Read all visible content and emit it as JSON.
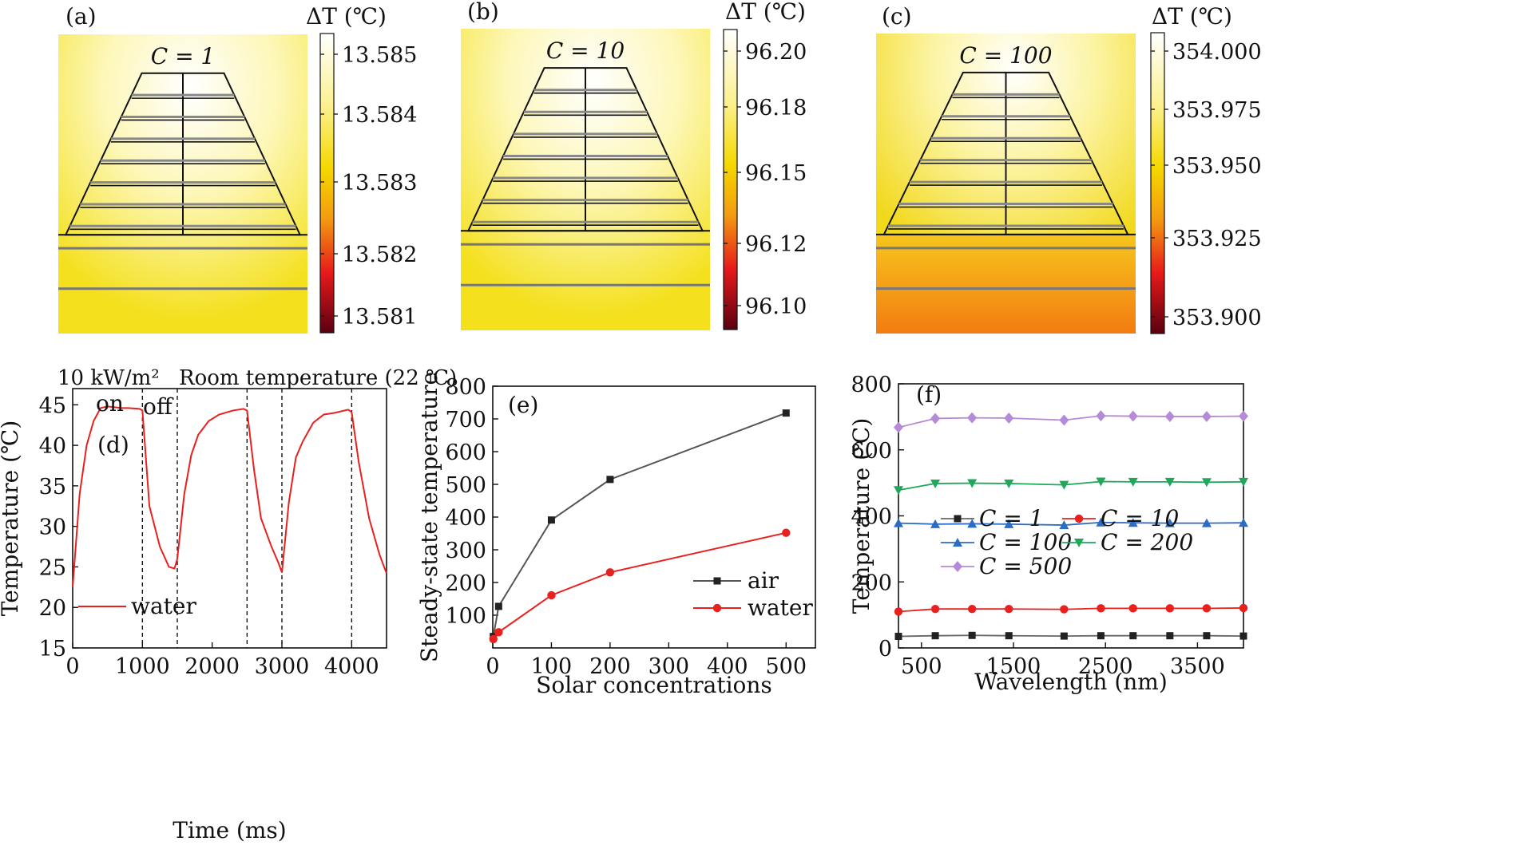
{
  "colors": {
    "hot_white": "#fffef0",
    "yellow": "#f6e21a",
    "orange": "#f58a10",
    "red": "#e31a1c",
    "dark_red": "#6b0012",
    "series_red": "#e8211f",
    "series_gray": "#555555"
  },
  "heatmaps": [
    {
      "panel": "(a)",
      "label": "C = 1",
      "colorbar_title": "ΔT (℃)",
      "ticks": [
        "13.585",
        "13.584",
        "13.583",
        "13.582",
        "13.581"
      ],
      "bottom_orange": false
    },
    {
      "panel": "(b)",
      "label": "C = 10",
      "colorbar_title": "ΔT (℃)",
      "ticks": [
        "96.20",
        "96.18",
        "96.15",
        "96.12",
        "96.10"
      ],
      "bottom_orange": false
    },
    {
      "panel": "(c)",
      "label": "C = 100",
      "colorbar_title": "ΔT (℃)",
      "ticks": [
        "354.000",
        "353.975",
        "353.950",
        "353.925",
        "353.900"
      ],
      "bottom_orange": true
    }
  ],
  "chart_data": [
    {
      "type": "line",
      "panel": "(d)",
      "title": "",
      "xlabel": "Time (ms)",
      "ylabel": "Temperature (℃)",
      "xlim": [
        0,
        4500
      ],
      "ylim": [
        15,
        47
      ],
      "xticks": [
        "0",
        "1000",
        "2000",
        "3000",
        "4000"
      ],
      "yticks": [
        "15",
        "20",
        "25",
        "30",
        "35",
        "40",
        "45"
      ],
      "annotations": {
        "power": "10 kW/m²",
        "room": "Room temperature (22 ℃)",
        "on": "on",
        "off": "off"
      },
      "vlines": [
        1000,
        1500,
        2500,
        3000,
        4000
      ],
      "legend": [
        "water"
      ],
      "series": [
        {
          "name": "water",
          "x": [
            0,
            100,
            200,
            300,
            400,
            500,
            600,
            700,
            800,
            960,
            1000,
            1100,
            1250,
            1380,
            1460,
            1500,
            1600,
            1700,
            1800,
            1950,
            2100,
            2300,
            2450,
            2500,
            2600,
            2700,
            2850,
            2950,
            3000,
            3100,
            3200,
            3300,
            3450,
            3600,
            3750,
            3950,
            4000,
            4100,
            4250,
            4400,
            4500
          ],
          "y": [
            22.5,
            34,
            40,
            43,
            44.6,
            44.8,
            44.7,
            44.6,
            44.6,
            44.5,
            44.3,
            32.5,
            27.5,
            25,
            24.8,
            26,
            34,
            38.8,
            41.3,
            43,
            43.8,
            44.3,
            44.5,
            44.3,
            37,
            31,
            27.5,
            25.5,
            24.3,
            33,
            38.5,
            40.5,
            42.8,
            43.8,
            44,
            44.4,
            44.1,
            38,
            31,
            26.5,
            24.2
          ]
        }
      ]
    },
    {
      "type": "line",
      "panel": "(e)",
      "title": "",
      "xlabel": "Solar concentrations",
      "ylabel": "Steady-state temperature",
      "xlim": [
        0,
        550
      ],
      "ylim": [
        0,
        800
      ],
      "xticks": [
        "0",
        "100",
        "200",
        "300",
        "400",
        "500"
      ],
      "yticks": [
        "100",
        "200",
        "300",
        "400",
        "500",
        "600",
        "700",
        "800"
      ],
      "legend": [
        "air",
        "water"
      ],
      "series": [
        {
          "name": "air",
          "x": [
            1,
            10,
            100,
            200,
            500
          ],
          "y": [
            35,
            127,
            391,
            515,
            718
          ]
        },
        {
          "name": "water",
          "x": [
            1,
            10,
            100,
            200,
            500
          ],
          "y": [
            27,
            48,
            161,
            231,
            352
          ]
        }
      ]
    },
    {
      "type": "line",
      "panel": "(f)",
      "title": "",
      "xlabel": "Wavelength (nm)",
      "ylabel": "Temperature (℃)",
      "xlim": [
        250,
        4000
      ],
      "ylim": [
        0,
        800
      ],
      "xticks": [
        "500",
        "1500",
        "2500",
        "3500"
      ],
      "yticks": [
        "0",
        "200",
        "400",
        "600",
        "800"
      ],
      "legend": [
        "C = 1",
        "C = 10",
        "C = 100",
        "C = 200",
        "C = 500"
      ],
      "x": [
        250,
        650,
        1050,
        1450,
        2050,
        2450,
        2800,
        3200,
        3600,
        4000
      ],
      "series": [
        {
          "name": "C = 1",
          "values": [
            35,
            37,
            38,
            37,
            36,
            37,
            37,
            37,
            37,
            36
          ]
        },
        {
          "name": "C = 10",
          "values": [
            110,
            118,
            118,
            118,
            117,
            120,
            120,
            120,
            120,
            121
          ]
        },
        {
          "name": "C = 100",
          "values": [
            378,
            375,
            376,
            375,
            372,
            380,
            379,
            378,
            378,
            379
          ]
        },
        {
          "name": "C = 200",
          "values": [
            478,
            498,
            499,
            498,
            494,
            504,
            503,
            503,
            502,
            503
          ]
        },
        {
          "name": "C = 500",
          "values": [
            668,
            695,
            697,
            696,
            690,
            703,
            702,
            701,
            701,
            702
          ]
        }
      ]
    }
  ]
}
